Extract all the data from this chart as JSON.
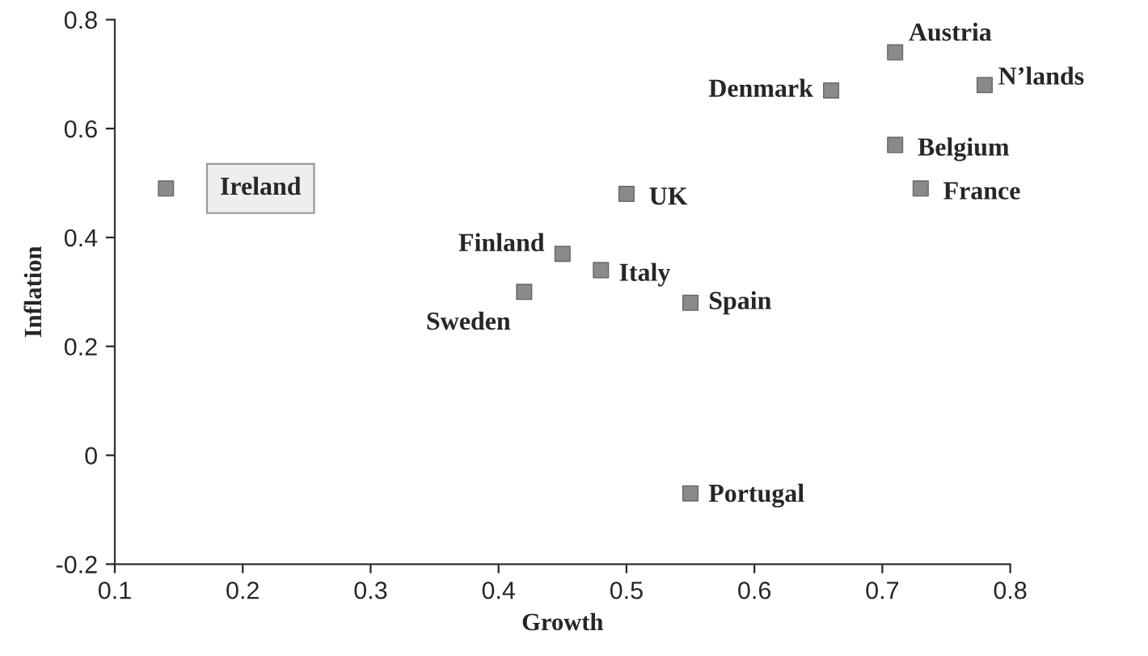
{
  "chart_data": {
    "type": "scatter",
    "xlabel": "Growth",
    "ylabel": "Inflation",
    "xlim": [
      0.1,
      0.8
    ],
    "xticks": [
      0.1,
      0.2,
      0.3,
      0.4,
      0.5,
      0.6,
      0.7,
      0.8
    ],
    "ylim": [
      -0.2,
      0.8
    ],
    "yticks": [
      {
        "value": -0.2,
        "label": "-0.2"
      },
      0,
      0.2,
      0.4,
      0.6,
      0.8
    ],
    "marker": "square",
    "grid": false,
    "legend": false,
    "series": [
      {
        "color": "#8a8a8a",
        "x": [
          0.14,
          0.5,
          0.45,
          0.48,
          0.42,
          0.55,
          0.55,
          0.66,
          0.71,
          0.78,
          0.71,
          0.73
        ],
        "values": [
          0.49,
          0.48,
          0.37,
          0.34,
          0.3,
          0.28,
          -0.07,
          0.67,
          0.74,
          0.68,
          0.57,
          0.49
        ]
      }
    ],
    "annotations": [
      {
        "text": "Ireland",
        "x": 0.14,
        "y": 0.49
      },
      {
        "text": "UK",
        "x": 0.5,
        "y": 0.48
      },
      {
        "text": "Finland",
        "x": 0.45,
        "y": 0.37
      },
      {
        "text": "Italy",
        "x": 0.48,
        "y": 0.34
      },
      {
        "text": "Sweden",
        "x": 0.42,
        "y": 0.3
      },
      {
        "text": "Spain",
        "x": 0.55,
        "y": 0.28
      },
      {
        "text": "Portugal",
        "x": 0.55,
        "y": -0.07
      },
      {
        "text": "Denmark",
        "x": 0.66,
        "y": 0.67
      },
      {
        "text": "Austria",
        "x": 0.71,
        "y": 0.74
      },
      {
        "text": "N’lands",
        "x": 0.78,
        "y": 0.68
      },
      {
        "text": "Belgium",
        "x": 0.71,
        "y": 0.57
      },
      {
        "text": "France",
        "x": 0.73,
        "y": 0.49
      }
    ]
  }
}
